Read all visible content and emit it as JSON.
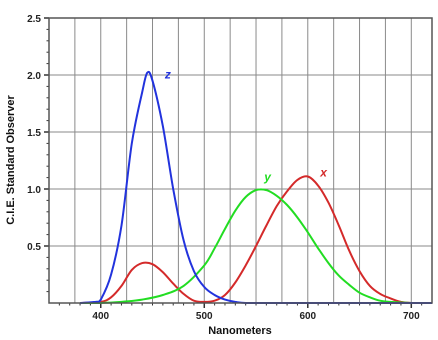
{
  "chart_data": {
    "type": "line",
    "title": "",
    "xlabel": "Nanometers",
    "ylabel": "C.I.E. Standard Observer",
    "xlim": [
      350,
      720
    ],
    "ylim": [
      0,
      2.5
    ],
    "x_ticks": [
      400,
      500,
      600,
      700
    ],
    "x_tick_labels": [
      "400",
      "500",
      "600",
      "700"
    ],
    "y_ticks": [
      0.5,
      1.0,
      1.5,
      2.0,
      2.5
    ],
    "y_tick_labels": [
      "0.5",
      "1.0",
      "1.5",
      "2.0",
      "2.5"
    ],
    "grid": true,
    "legend": "none",
    "series": [
      {
        "name": "x",
        "color": "#d42a2a",
        "x": [
          380,
          400,
          410,
          420,
          430,
          440,
          450,
          460,
          470,
          480,
          490,
          500,
          510,
          520,
          530,
          540,
          550,
          560,
          570,
          580,
          590,
          600,
          610,
          620,
          630,
          640,
          650,
          660,
          670,
          680,
          690,
          700,
          720
        ],
        "y": [
          0.0,
          0.01,
          0.05,
          0.15,
          0.29,
          0.35,
          0.34,
          0.27,
          0.17,
          0.08,
          0.02,
          0.01,
          0.02,
          0.07,
          0.18,
          0.33,
          0.5,
          0.68,
          0.85,
          0.98,
          1.08,
          1.11,
          1.03,
          0.88,
          0.68,
          0.46,
          0.28,
          0.15,
          0.08,
          0.04,
          0.01,
          0.0,
          0.0
        ]
      },
      {
        "name": "y",
        "color": "#22dd22",
        "x": [
          380,
          400,
          420,
          440,
          460,
          480,
          500,
          510,
          520,
          530,
          540,
          550,
          560,
          570,
          580,
          590,
          600,
          610,
          620,
          630,
          640,
          650,
          660,
          670,
          680,
          700,
          720
        ],
        "y": [
          0.0,
          0.0,
          0.01,
          0.03,
          0.07,
          0.15,
          0.33,
          0.48,
          0.65,
          0.81,
          0.93,
          0.99,
          0.99,
          0.94,
          0.86,
          0.75,
          0.62,
          0.48,
          0.35,
          0.24,
          0.16,
          0.09,
          0.05,
          0.02,
          0.01,
          0.0,
          0.0
        ]
      },
      {
        "name": "z",
        "color": "#2233dd",
        "x": [
          380,
          395,
          400,
          410,
          420,
          430,
          440,
          445,
          450,
          460,
          470,
          480,
          490,
          500,
          510,
          520,
          530,
          540,
          560,
          720
        ],
        "y": [
          0.0,
          0.01,
          0.03,
          0.25,
          0.68,
          1.4,
          1.85,
          2.02,
          1.95,
          1.55,
          1.0,
          0.55,
          0.28,
          0.14,
          0.07,
          0.03,
          0.01,
          0.0,
          0.0,
          0.0
        ]
      }
    ],
    "annotations": [
      {
        "text": "z",
        "x": 462,
        "y": 1.97,
        "color": "#2233dd"
      },
      {
        "text": "y",
        "x": 558,
        "y": 1.07,
        "color": "#22dd22"
      },
      {
        "text": "x",
        "x": 612,
        "y": 1.11,
        "color": "#d42a2a"
      }
    ]
  }
}
